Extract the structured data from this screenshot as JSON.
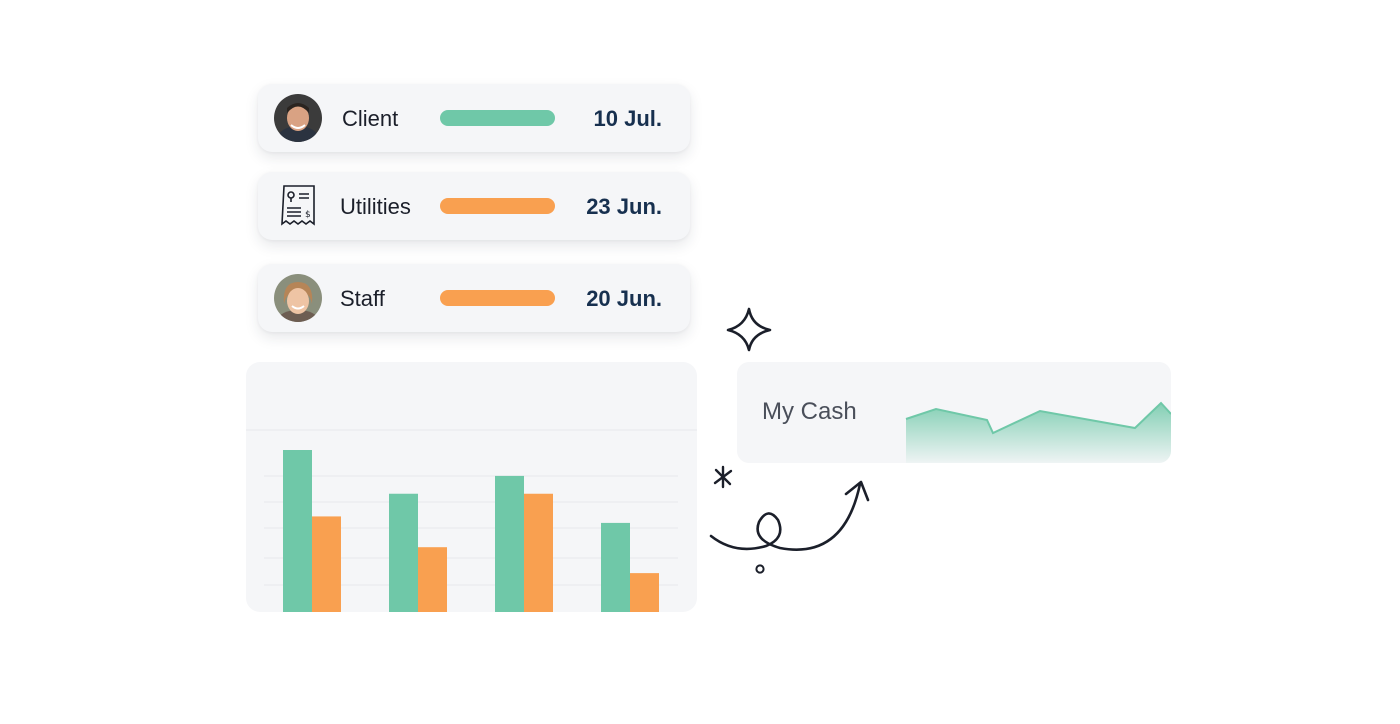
{
  "transactions": [
    {
      "label": "Client",
      "date": "10 Jul.",
      "bar_color": "#6fc8a8",
      "avatar": "man-avatar"
    },
    {
      "label": "Utilities",
      "date": "23 Jun.",
      "bar_color": "#f9a050",
      "icon": "bill-receipt-icon"
    },
    {
      "label": "Staff",
      "date": "20 Jun.",
      "bar_color": "#f9a050",
      "avatar": "woman-avatar"
    }
  ],
  "cash_card": {
    "label": "My Cash",
    "sparkline_color": "#6fc8a8"
  },
  "chart_data": {
    "type": "bar",
    "ylim": [
      0,
      100
    ],
    "grid": true,
    "series": [
      {
        "color": "#6fc8a8",
        "values": [
          100,
          73,
          84,
          55
        ]
      },
      {
        "color": "#f9a050",
        "values": [
          59,
          40,
          73,
          24
        ]
      }
    ]
  },
  "colors": {
    "green": "#6fc8a8",
    "orange": "#f9a050",
    "card_bg": "#f5f6f8",
    "date_text": "#17304f"
  }
}
